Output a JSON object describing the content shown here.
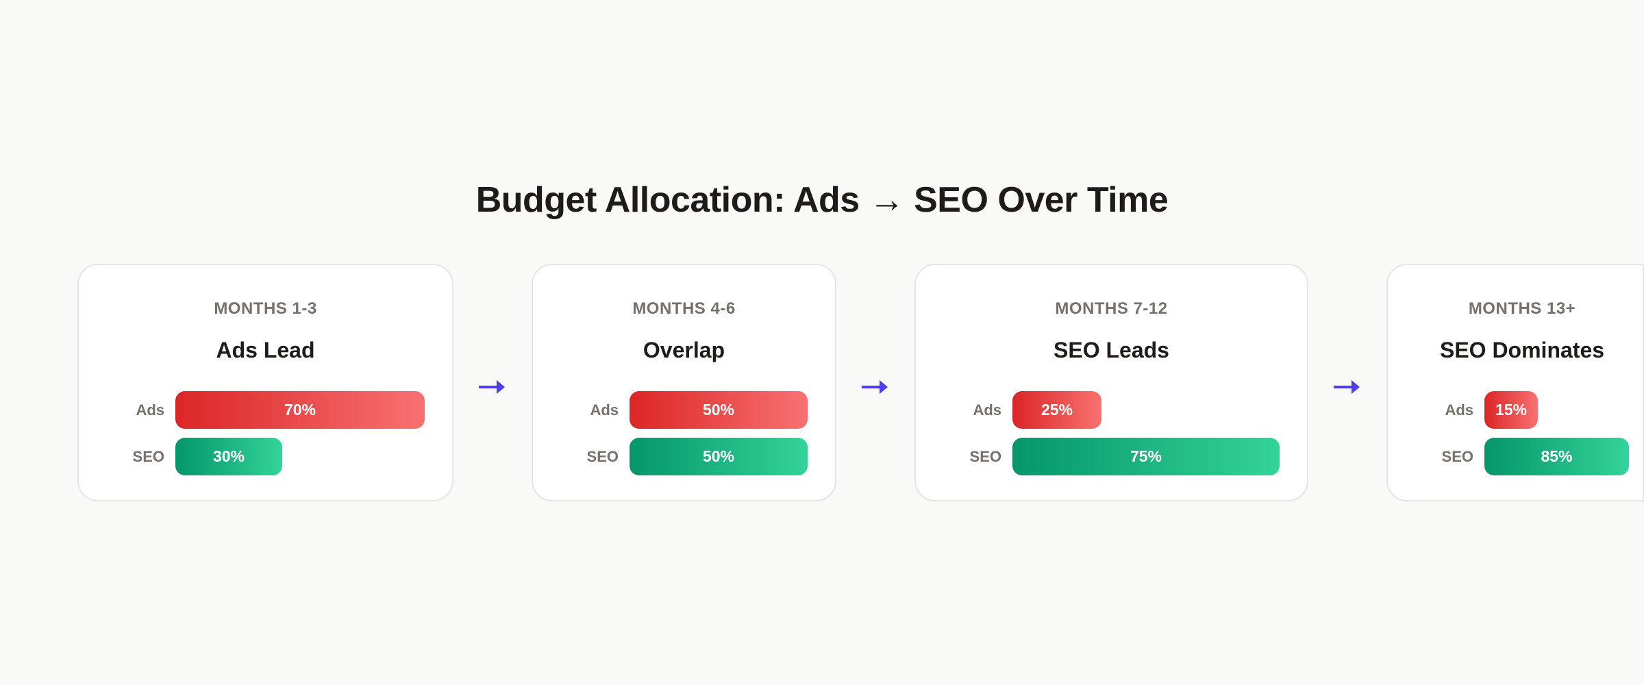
{
  "title": "Budget Allocation: Ads → SEO Over Time",
  "colors": {
    "ads_start": "#dc2626",
    "ads_end": "#f87171",
    "seo_start": "#059669",
    "seo_end": "#34d399",
    "arrow": "#4f3df0"
  },
  "labels": {
    "ads": "Ads",
    "seo": "SEO"
  },
  "arrow_icon": "arrow-right-icon",
  "stages": [
    {
      "period": "MONTHS 1-3",
      "phase": "Ads Lead",
      "ads": 70,
      "seo": 30,
      "ads_label": "70%",
      "seo_label": "30%"
    },
    {
      "period": "MONTHS 4-6",
      "phase": "Overlap",
      "ads": 50,
      "seo": 50,
      "ads_label": "50%",
      "seo_label": "50%"
    },
    {
      "period": "MONTHS 7-12",
      "phase": "SEO Leads",
      "ads": 25,
      "seo": 75,
      "ads_label": "25%",
      "seo_label": "75%"
    },
    {
      "period": "MONTHS 13+",
      "phase": "SEO Dominates",
      "ads": 15,
      "seo": 85,
      "ads_label": "15%",
      "seo_label": "85%"
    }
  ]
}
